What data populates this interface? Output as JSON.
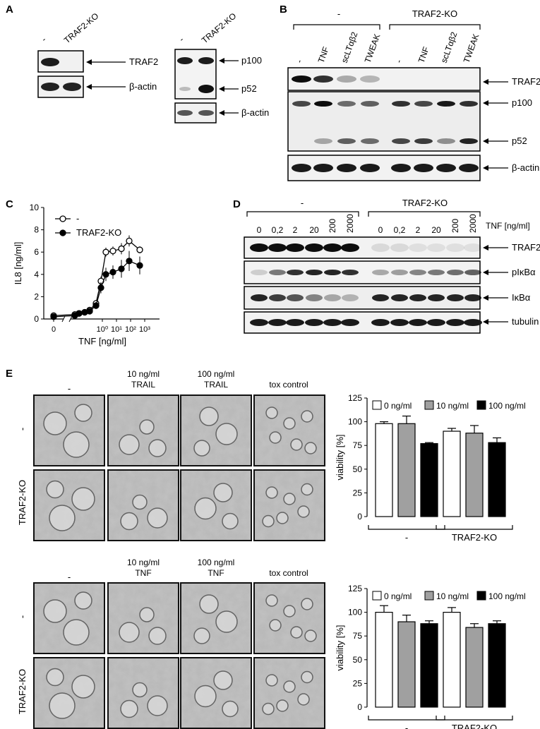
{
  "panelA": {
    "letter": "A",
    "left_blot": {
      "lanes": [
        "-",
        "TRAF2-KO"
      ],
      "rows": [
        "TRAF2",
        "β-actin"
      ]
    },
    "right_blot": {
      "lanes": [
        "-",
        "TRAF2-KO"
      ],
      "rows": [
        "p100",
        "p52",
        "β-actin"
      ]
    }
  },
  "panelB": {
    "letter": "B",
    "group_left": "-",
    "group_right": "TRAF2-KO",
    "lanes": [
      "-",
      "TNF",
      "scLTαβ2",
      "TWEAK",
      "-",
      "TNF",
      "scLTαβ2",
      "TWEAK"
    ],
    "rows": [
      "TRAF2",
      "p100",
      "p52",
      "β-actin"
    ]
  },
  "panelC": {
    "letter": "C",
    "legend": [
      "-",
      "TRAF2-KO"
    ]
  },
  "panelD": {
    "letter": "D",
    "group_left": "-",
    "group_right": "TRAF2-KO",
    "unit": "TNF [ng/ml]",
    "lanes": [
      "0",
      "0,2",
      "2",
      "20",
      "200",
      "2000",
      "0",
      "0,2",
      "2",
      "20",
      "200",
      "2000"
    ],
    "rows": [
      "TRAF2",
      "pIκBα",
      "IκBα",
      "tubulin"
    ]
  },
  "panelE": {
    "letter": "E",
    "top": {
      "col_headers": [
        "-",
        "10 ng/ml",
        "TRAIL",
        "100 ng/ml",
        "TRAIL",
        "tox control"
      ],
      "row_labels": [
        "-",
        "TRAF2-KO"
      ]
    },
    "bottom": {
      "col_headers": [
        "-",
        "10 ng/ml",
        "TNF",
        "100 ng/ml",
        "TNF",
        "tox control"
      ],
      "row_labels": [
        "-",
        "TRAF2-KO"
      ]
    }
  },
  "chart_data": [
    {
      "type": "line",
      "xlabel": "TNF [ng/ml]",
      "ylabel": "IL8 [ng/ml]",
      "x_scale": "log",
      "x_ticks": [
        "0",
        "10⁰",
        "10¹",
        "10²",
        "10³"
      ],
      "y_ticks": [
        "0",
        "2",
        "4",
        "6",
        "8",
        "10"
      ],
      "ylim": [
        0,
        10
      ],
      "x": [
        0,
        0.002,
        0.005,
        0.02,
        0.06,
        0.2,
        0.6,
        2,
        6,
        20,
        60,
        200,
        600
      ],
      "series": [
        {
          "name": "-",
          "marker": "open-circle",
          "values": [
            0.3,
            0.4,
            0.5,
            0.6,
            0.8,
            1.4,
            3.4,
            6.0,
            6.1,
            6.3,
            7.0,
            6.2,
            null
          ],
          "errors": [
            0.1,
            0.1,
            0.1,
            0.1,
            0.2,
            0.3,
            0.4,
            0.4,
            0.4,
            0.5,
            0.5,
            0.3,
            null
          ]
        },
        {
          "name": "TRAF2-KO",
          "marker": "filled-circle",
          "values": [
            0.2,
            0.3,
            0.5,
            0.6,
            0.7,
            1.2,
            2.8,
            4.0,
            4.2,
            4.5,
            5.2,
            4.8,
            null
          ],
          "errors": [
            0.1,
            0.1,
            0.1,
            0.1,
            0.2,
            0.3,
            0.5,
            0.6,
            0.6,
            0.8,
            0.9,
            0.8,
            null
          ]
        }
      ]
    },
    {
      "type": "bar",
      "ylabel": "viability [%]",
      "y_ticks": [
        "0",
        "25",
        "50",
        "75",
        "100",
        "125"
      ],
      "ylim": [
        0,
        125
      ],
      "groups": [
        "-",
        "TRAF2-KO"
      ],
      "series": [
        {
          "name": "0 ng/ml",
          "color": "#ffffff",
          "values": [
            98,
            90
          ],
          "errors": [
            2,
            3
          ]
        },
        {
          "name": "10 ng/ml",
          "color": "#a0a0a0",
          "values": [
            98,
            88
          ],
          "errors": [
            8,
            8
          ]
        },
        {
          "name": "100 ng/ml",
          "color": "#000000",
          "values": [
            77,
            78
          ],
          "errors": [
            1,
            5
          ]
        }
      ]
    },
    {
      "type": "bar",
      "ylabel": "viability [%]",
      "y_ticks": [
        "0",
        "25",
        "50",
        "75",
        "100",
        "125"
      ],
      "ylim": [
        0,
        125
      ],
      "groups": [
        "-",
        "TRAF2-KO"
      ],
      "series": [
        {
          "name": "0 ng/ml",
          "color": "#ffffff",
          "values": [
            100,
            100
          ],
          "errors": [
            7,
            5
          ]
        },
        {
          "name": "10 ng/ml",
          "color": "#a0a0a0",
          "values": [
            90,
            84
          ],
          "errors": [
            7,
            4
          ]
        },
        {
          "name": "100 ng/ml",
          "color": "#000000",
          "values": [
            88,
            88
          ],
          "errors": [
            3,
            3
          ]
        }
      ]
    }
  ]
}
